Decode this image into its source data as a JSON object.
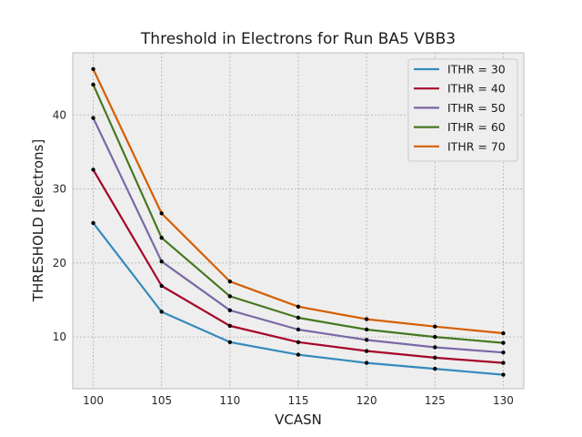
{
  "chart_data": {
    "type": "line",
    "title": "Threshold in Electrons for Run BA5 VBB3",
    "xlabel": "VCASN",
    "ylabel": "THRESHOLD [electrons]",
    "x": [
      100,
      105,
      110,
      115,
      120,
      125,
      130
    ],
    "x_ticks": [
      100,
      105,
      110,
      115,
      120,
      125,
      130
    ],
    "y_ticks": [
      10,
      20,
      30,
      40
    ],
    "xlim": [
      98.5,
      131.5
    ],
    "ylim": [
      3.0,
      48.4
    ],
    "grid": true,
    "legend_position": "top-right",
    "marker_color": "#000000",
    "series": [
      {
        "name": "ITHR = 30",
        "color": "#348abd",
        "values": [
          25.4,
          13.4,
          9.3,
          7.6,
          6.5,
          5.7,
          4.9
        ]
      },
      {
        "name": "ITHR = 40",
        "color": "#a60628",
        "values": [
          32.6,
          16.9,
          11.5,
          9.3,
          8.1,
          7.2,
          6.5
        ]
      },
      {
        "name": "ITHR = 50",
        "color": "#7a68a6",
        "values": [
          39.6,
          20.2,
          13.6,
          11.0,
          9.6,
          8.6,
          7.9
        ]
      },
      {
        "name": "ITHR = 60",
        "color": "#467821",
        "values": [
          44.1,
          23.4,
          15.5,
          12.6,
          11.0,
          10.0,
          9.2
        ]
      },
      {
        "name": "ITHR = 70",
        "color": "#d55e00",
        "values": [
          46.2,
          26.7,
          17.5,
          14.1,
          12.4,
          11.4,
          10.5
        ]
      }
    ]
  }
}
